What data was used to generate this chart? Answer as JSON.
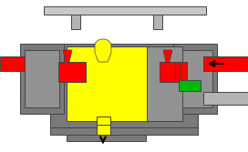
{
  "bg_color": "#ffffff",
  "gray_dark": "#7a7a7a",
  "gray_mid": "#929292",
  "gray_light": "#b4b4b4",
  "gray_lighter": "#c8c8c8",
  "red": "#ff0000",
  "yellow": "#ffff00",
  "green": "#00bb00",
  "black": "#000000",
  "outline": "#444444",
  "lw_main": 0.7
}
